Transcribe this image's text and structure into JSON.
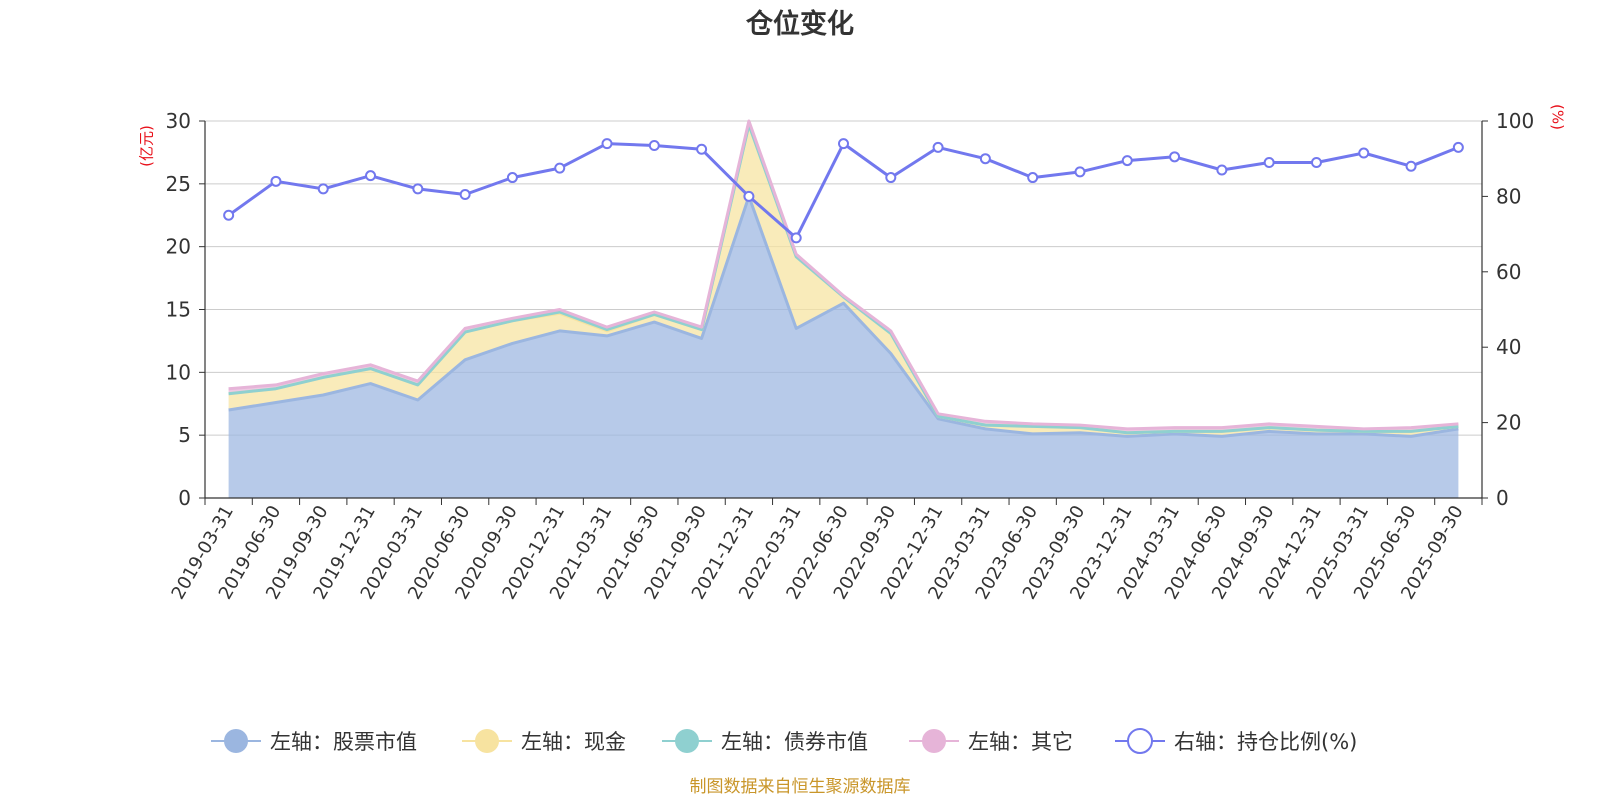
{
  "chart_data": {
    "type": "area",
    "title": "仓位变化",
    "left_unit": "(亿元)",
    "right_unit": "(%)",
    "left_ylim": [
      0,
      30
    ],
    "left_ticks": [
      "0",
      "5",
      "10",
      "15",
      "20",
      "25",
      "30"
    ],
    "right_ylim": [
      0,
      100
    ],
    "right_ticks": [
      "0",
      "20",
      "40",
      "60",
      "80",
      "100"
    ],
    "categories": [
      "2019-03-31",
      "2019-06-30",
      "2019-09-30",
      "2019-12-31",
      "2020-03-31",
      "2020-06-30",
      "2020-09-30",
      "2020-12-31",
      "2021-03-31",
      "2021-06-30",
      "2021-09-30",
      "2021-12-31",
      "2022-03-31",
      "2022-06-30",
      "2022-09-30",
      "2022-12-31",
      "2023-03-31",
      "2023-06-30",
      "2023-09-30",
      "2023-12-31",
      "2024-03-31",
      "2024-06-30",
      "2024-09-30",
      "2024-12-31",
      "2025-03-31",
      "2025-06-30",
      "2025-09-30"
    ],
    "series": [
      {
        "name": "左轴：股票市值",
        "axis": "left",
        "color": "#9bb6e0",
        "values": [
          7.0,
          7.6,
          8.2,
          9.1,
          7.8,
          11.0,
          12.3,
          13.3,
          12.9,
          14.0,
          12.7,
          24.0,
          13.5,
          15.5,
          11.5,
          6.3,
          5.5,
          5.1,
          5.2,
          4.9,
          5.1,
          4.9,
          5.3,
          5.1,
          5.1,
          4.9,
          5.5
        ]
      },
      {
        "name": "左轴：现金",
        "axis": "left",
        "color": "#f7e3a0",
        "values": [
          1.3,
          1.1,
          1.4,
          1.2,
          1.2,
          2.2,
          1.8,
          1.4,
          0.4,
          0.6,
          0.7,
          5.7,
          5.7,
          0.5,
          1.6,
          0.2,
          0.3,
          0.6,
          0.4,
          0.3,
          0.2,
          0.4,
          0.3,
          0.3,
          0.2,
          0.4,
          0.2
        ]
      },
      {
        "name": "左轴：债券市值",
        "axis": "left",
        "color": "#8fd0d0",
        "values": [
          0,
          0,
          0,
          0,
          0,
          0,
          0,
          0.1,
          0.1,
          0,
          0,
          0,
          0,
          0,
          0,
          0,
          0,
          0,
          0,
          0,
          0,
          0,
          0,
          0,
          0,
          0,
          0
        ]
      },
      {
        "name": "左轴：其它",
        "axis": "left",
        "color": "#e6b4d8",
        "values": [
          0.4,
          0.3,
          0.3,
          0.3,
          0.3,
          0.3,
          0.2,
          0.2,
          0.2,
          0.2,
          0.2,
          0.3,
          0.2,
          0.1,
          0.2,
          0.2,
          0.3,
          0.2,
          0.2,
          0.3,
          0.3,
          0.3,
          0.3,
          0.3,
          0.2,
          0.3,
          0.2
        ]
      },
      {
        "name": "右轴：持仓比例(%)",
        "axis": "right",
        "color": "#7278ee",
        "values": [
          75,
          84,
          82,
          85.5,
          82,
          80.5,
          85,
          87.5,
          94,
          93.5,
          92.5,
          80,
          69,
          94,
          85,
          93,
          90,
          85,
          86.5,
          89.5,
          90.5,
          87,
          89,
          89,
          91.5,
          88,
          93
        ]
      }
    ]
  },
  "footer": {
    "source": "制图数据来自恒生聚源数据库"
  }
}
